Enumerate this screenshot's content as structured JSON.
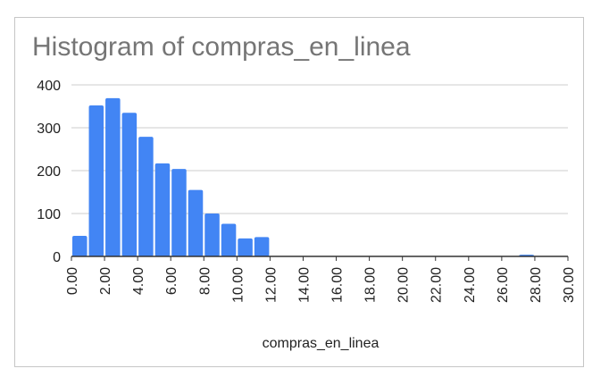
{
  "chart_data": {
    "type": "bar",
    "title": "Histogram of compras_en_linea",
    "xlabel": "compras_en_linea",
    "ylabel": "",
    "ylim": [
      0,
      400
    ],
    "xlim": [
      0,
      30
    ],
    "y_ticks": [
      "0",
      "100",
      "200",
      "300",
      "400"
    ],
    "x_ticks": [
      "0.00",
      "2.00",
      "4.00",
      "6.00",
      "8.00",
      "10.00",
      "12.00",
      "14.00",
      "16.00",
      "18.00",
      "20.00",
      "22.00",
      "24.00",
      "26.00",
      "28.00",
      "30.00"
    ],
    "bin_width": 1,
    "bins": [
      {
        "x0": 0,
        "x1": 1,
        "value": 48
      },
      {
        "x0": 1,
        "x1": 2,
        "value": 352
      },
      {
        "x0": 2,
        "x1": 3,
        "value": 369
      },
      {
        "x0": 3,
        "x1": 4,
        "value": 335
      },
      {
        "x0": 4,
        "x1": 5,
        "value": 279
      },
      {
        "x0": 5,
        "x1": 6,
        "value": 217
      },
      {
        "x0": 6,
        "x1": 7,
        "value": 204
      },
      {
        "x0": 7,
        "x1": 8,
        "value": 155
      },
      {
        "x0": 8,
        "x1": 9,
        "value": 100
      },
      {
        "x0": 9,
        "x1": 10,
        "value": 76
      },
      {
        "x0": 10,
        "x1": 11,
        "value": 42
      },
      {
        "x0": 11,
        "x1": 12,
        "value": 45
      },
      {
        "x0": 27,
        "x1": 28,
        "value": 4
      }
    ],
    "grid": true,
    "bar_color": "#4285f4"
  }
}
